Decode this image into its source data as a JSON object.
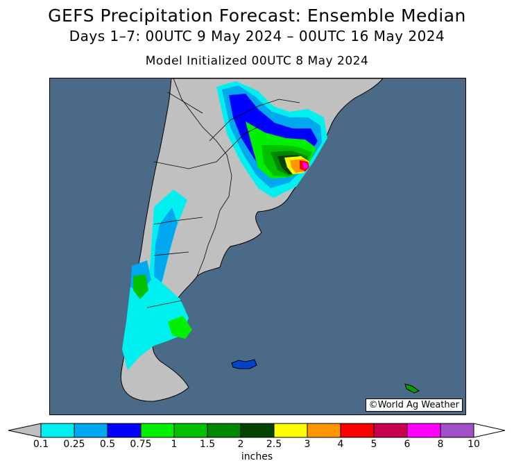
{
  "title": "GEFS Precipitation Forecast: Ensemble Median",
  "subtitle": "Days 1–7: 00UTC 9 May 2024 – 00UTC 16 May 2024",
  "init_line": "Model Initialized 00UTC 8 May 2024",
  "credit": "©World Ag Weather",
  "colors": {
    "ocean": "#4b6a88",
    "land": "#c0c0c0",
    "under": "#bfbfbf",
    "over": "#ffffff"
  },
  "legend": {
    "units": "inches",
    "bins": [
      {
        "from": "0.1",
        "to": "0.25",
        "color": "#00f0f0"
      },
      {
        "from": "0.25",
        "to": "0.5",
        "color": "#00a8f0"
      },
      {
        "from": "0.5",
        "to": "0.75",
        "color": "#0000ff"
      },
      {
        "from": "0.75",
        "to": "1",
        "color": "#00f000"
      },
      {
        "from": "1",
        "to": "1.5",
        "color": "#00c000"
      },
      {
        "from": "1.5",
        "to": "2",
        "color": "#008800"
      },
      {
        "from": "2",
        "to": "2.5",
        "color": "#004400"
      },
      {
        "from": "2.5",
        "to": "3",
        "color": "#ffff00"
      },
      {
        "from": "3",
        "to": "4",
        "color": "#ff9600"
      },
      {
        "from": "4",
        "to": "5",
        "color": "#ff0000"
      },
      {
        "from": "5",
        "to": "6",
        "color": "#c80050"
      },
      {
        "from": "6",
        "to": "8",
        "color": "#ff00ff"
      },
      {
        "from": "8",
        "to": "10",
        "color": "#a050c8"
      }
    ],
    "ticks": [
      "0.1",
      "0.25",
      "0.5",
      "0.75",
      "1",
      "1.5",
      "2",
      "2.5",
      "3",
      "4",
      "5",
      "6",
      "8",
      "10"
    ]
  }
}
